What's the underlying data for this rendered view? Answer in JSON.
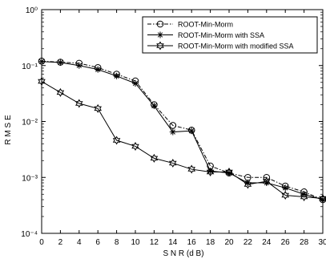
{
  "chart_data": {
    "type": "line",
    "title": "",
    "xlabel": "S N R (d B)",
    "ylabel": "R M S E",
    "xlim": [
      0,
      30
    ],
    "ylim": [
      0.0001,
      1
    ],
    "yscale": "log",
    "grid": false,
    "legend_position": "top-right",
    "x_ticks": [
      "0",
      "2",
      "4",
      "6",
      "8",
      "10",
      "12",
      "14",
      "16",
      "18",
      "20",
      "22",
      "24",
      "26",
      "28",
      "30"
    ],
    "y_ticks": [
      "10⁻⁴",
      "10⁻³",
      "10⁻²",
      "10⁻¹",
      "10⁰"
    ],
    "x": [
      0,
      2,
      4,
      6,
      8,
      10,
      12,
      14,
      16,
      18,
      20,
      22,
      24,
      26,
      28,
      30
    ],
    "series": [
      {
        "name": "ROOT-Min-Morm",
        "marker": "circle",
        "line_style": "dash-dot",
        "color": "#000000",
        "values": [
          0.12,
          0.115,
          0.11,
          0.092,
          0.07,
          0.053,
          0.02,
          0.0085,
          0.007,
          0.0016,
          0.0012,
          0.001,
          0.001,
          0.0007,
          0.00055,
          0.0004
        ]
      },
      {
        "name": "ROOT-Min-Morm with SSA",
        "marker": "asterisk",
        "line_style": "solid",
        "color": "#000000",
        "values": [
          0.118,
          0.113,
          0.1,
          0.085,
          0.065,
          0.048,
          0.019,
          0.0065,
          0.0068,
          0.0013,
          0.0012,
          0.0008,
          0.0008,
          0.00065,
          0.0005,
          0.0004
        ]
      },
      {
        "name": "ROOT-Min-Morm with modified SSA",
        "marker": "hexagram",
        "line_style": "solid",
        "color": "#000000",
        "values": [
          0.052,
          0.033,
          0.021,
          0.017,
          0.0046,
          0.0036,
          0.0022,
          0.0018,
          0.0014,
          0.00125,
          0.00125,
          0.00075,
          0.00085,
          0.00048,
          0.00045,
          0.00042
        ]
      }
    ]
  }
}
